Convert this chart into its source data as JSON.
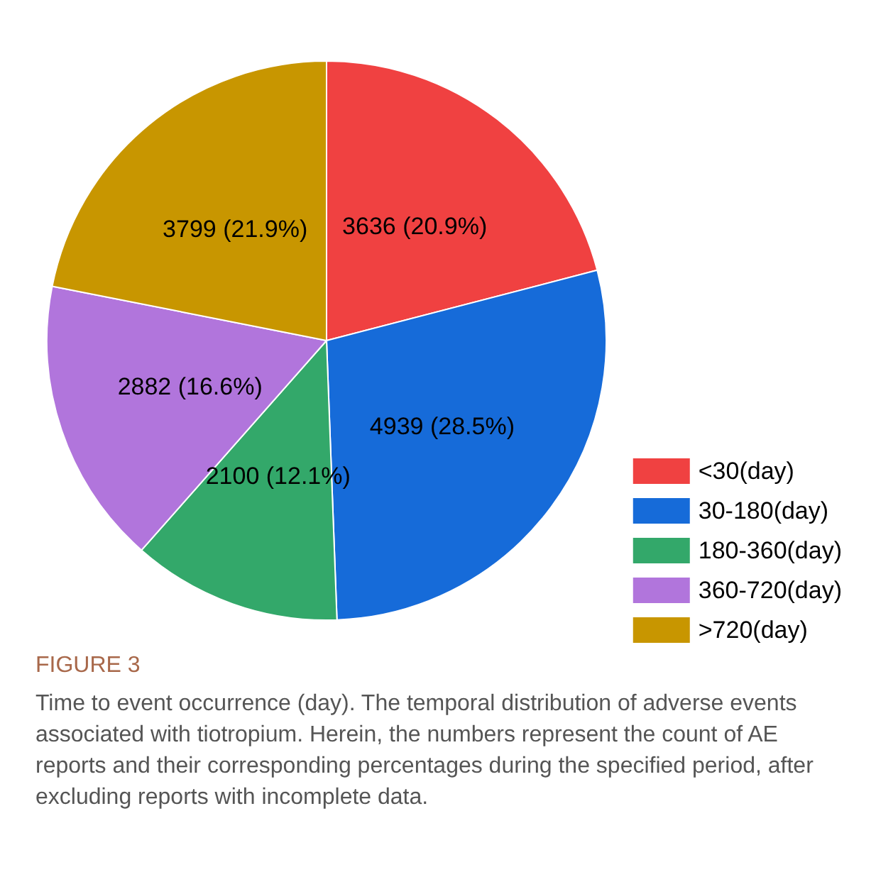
{
  "chart_data": {
    "type": "pie",
    "title": "FIGURE 3",
    "subtitle": "Time to event occurrence (day). The temporal distribution of adverse events associated with tiotropium. Herein, the numbers represent the count of AE reports and their corresponding percentages during the specified period, after excluding reports with incomplete data.",
    "categories": [
      "<30(day)",
      "30-180(day)",
      "180-360(day)",
      "360-720(day)",
      ">720(day)"
    ],
    "values": [
      3636,
      4939,
      2100,
      2882,
      3799
    ],
    "value_labels": [
      "3636 (20.9%)",
      "4939 (28.5%)",
      "2100 (12.1%)",
      "2882 (16.6%)",
      "3799 (21.9%)"
    ],
    "colors": [
      "#f04141",
      "#166bd9",
      "#33a86a",
      "#b175dc",
      "#c89600"
    ],
    "legend": "bottom right"
  }
}
